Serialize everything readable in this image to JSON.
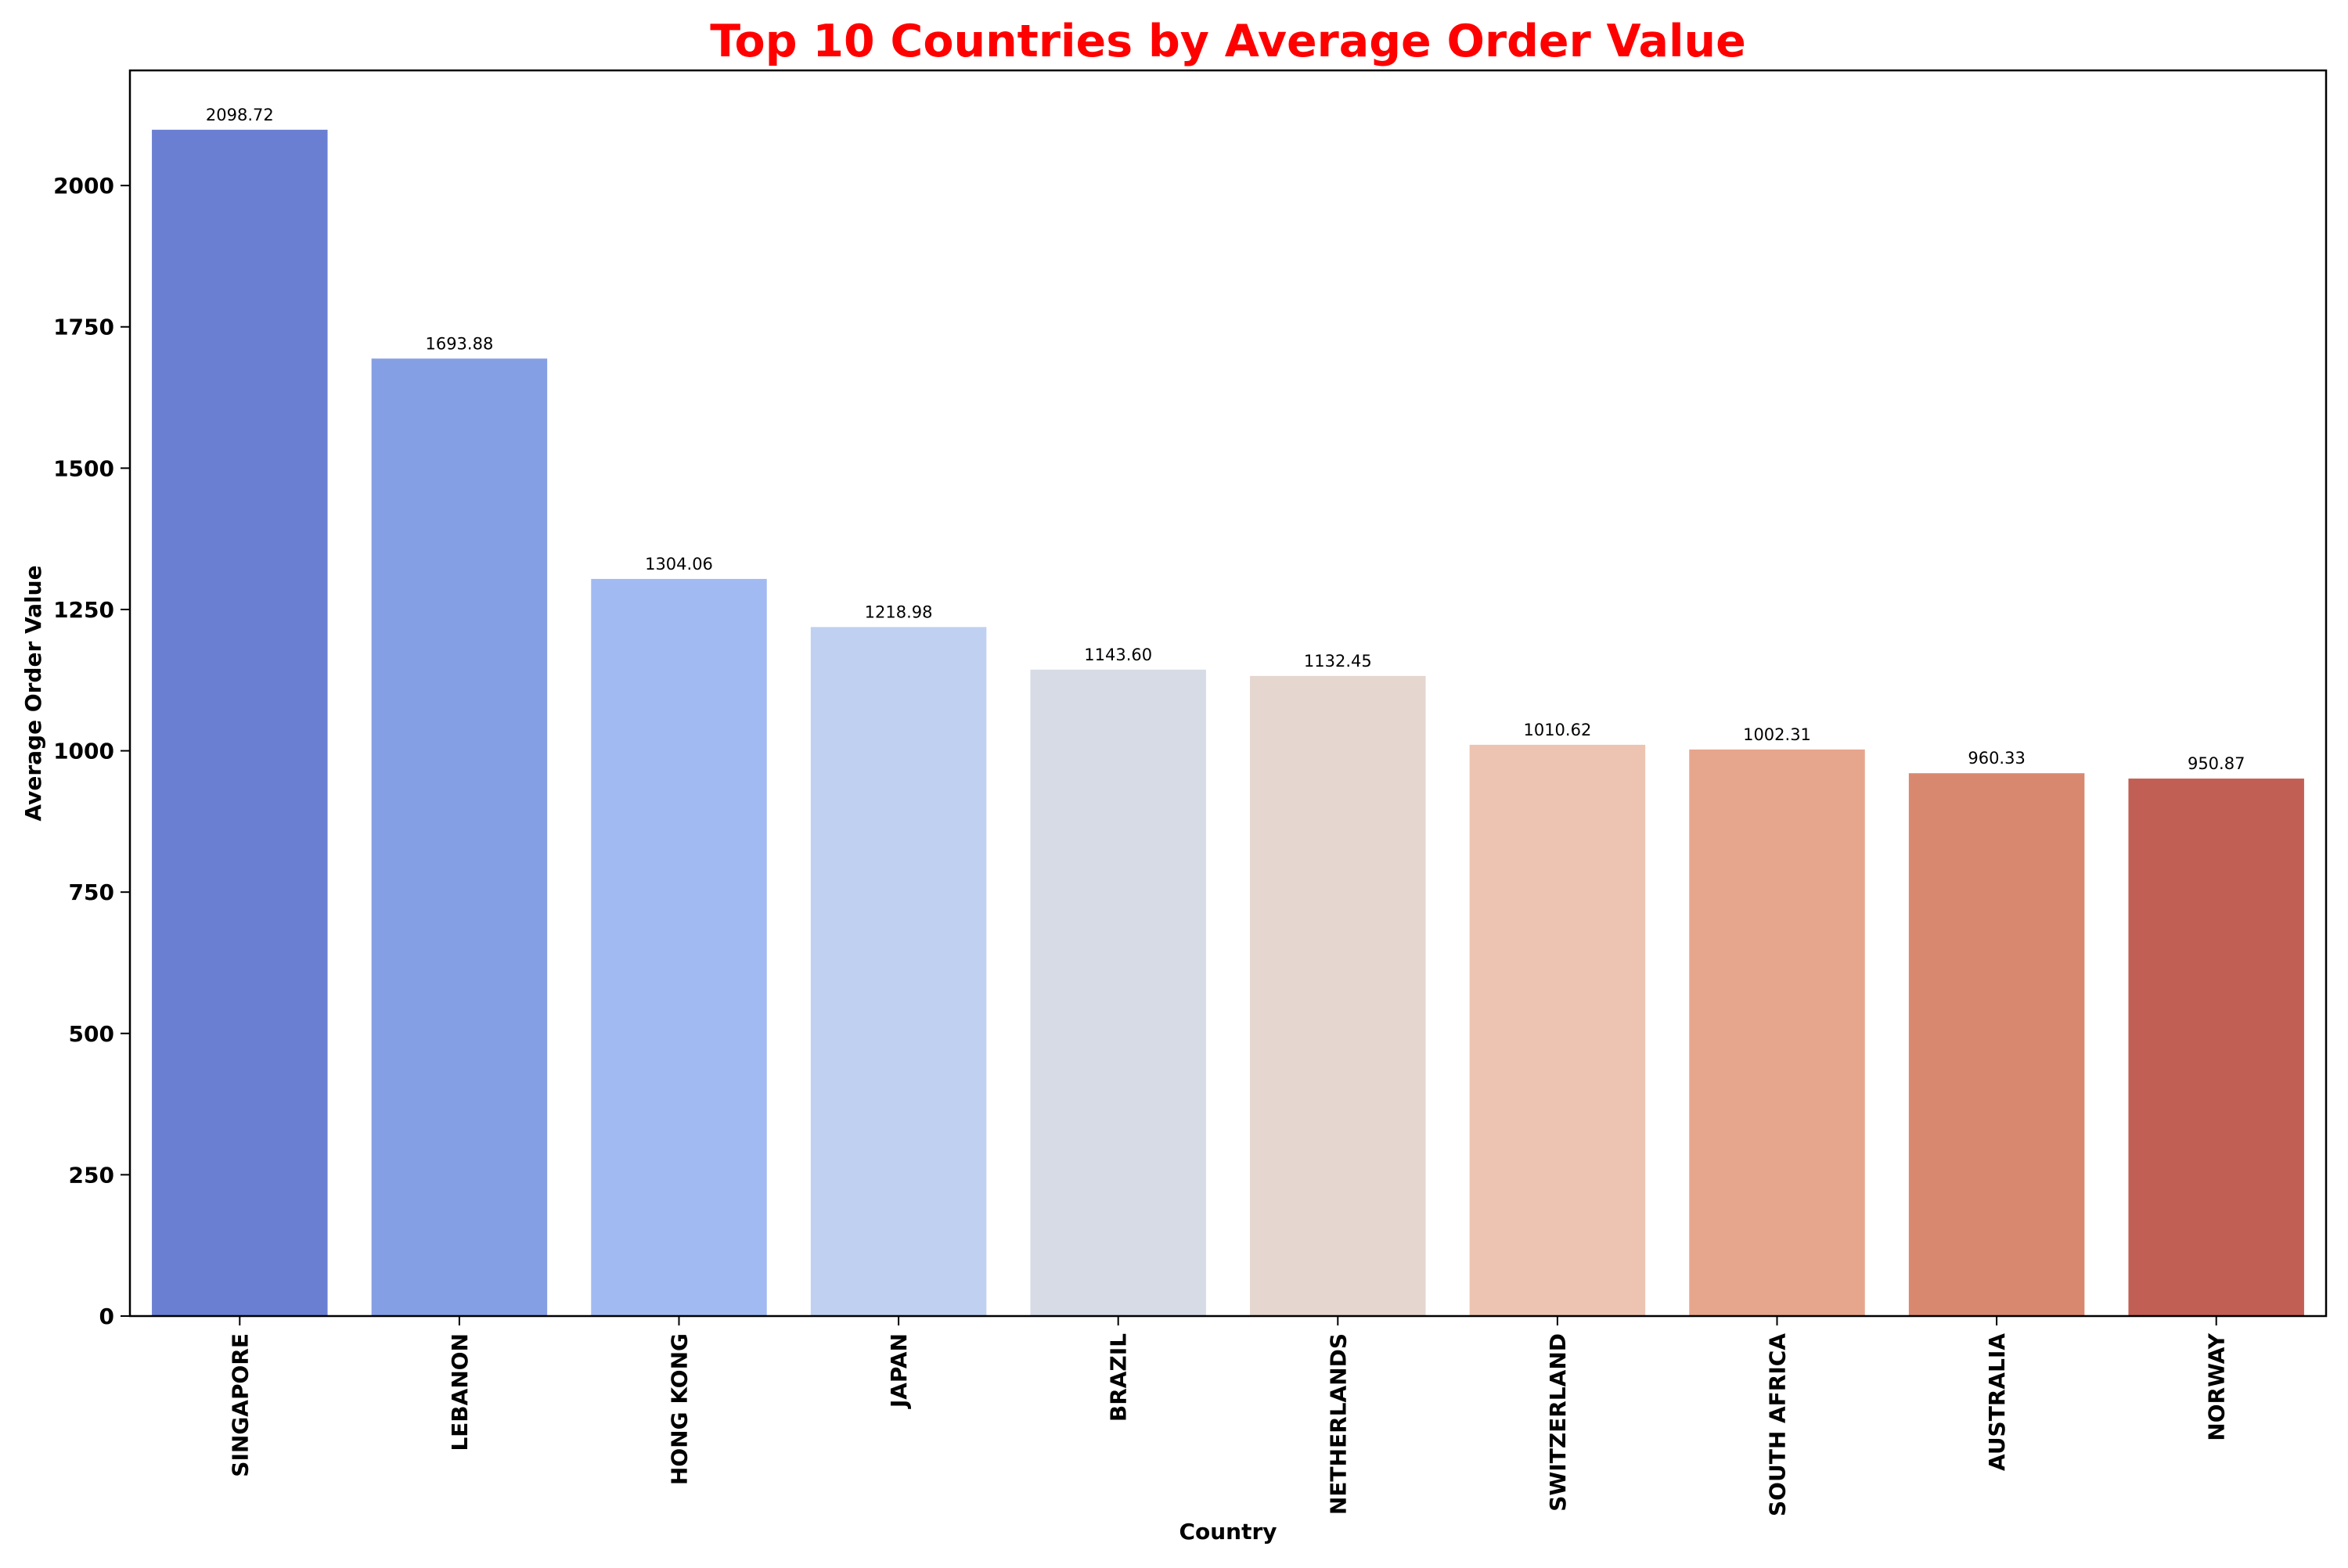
{
  "chart_data": {
    "type": "bar",
    "title": "Top 10 Countries by Average Order Value",
    "title_color": "#ff0000",
    "xlabel": "Country",
    "ylabel": "Average Order Value",
    "ylim": [
      0,
      2203.66
    ],
    "yticks": [
      0,
      250,
      500,
      750,
      1000,
      1250,
      1500,
      1750,
      2000
    ],
    "ytick_labels": [
      "0",
      "250",
      "500",
      "750",
      "1000",
      "1250",
      "1500",
      "1750",
      "2000"
    ],
    "grid": false,
    "legend": "none",
    "categories": [
      "SINGAPORE",
      "LEBANON",
      "HONG KONG",
      "JAPAN",
      "BRAZIL",
      "NETHERLANDS",
      "SWITZERLAND",
      "SOUTH AFRICA",
      "AUSTRALIA",
      "NORWAY"
    ],
    "values": [
      2098.72,
      1693.88,
      1304.06,
      1218.98,
      1143.6,
      1132.45,
      1010.62,
      1002.31,
      960.33,
      950.87
    ],
    "value_labels": [
      "2098.72",
      "1693.88",
      "1304.06",
      "1218.98",
      "1143.60",
      "1132.45",
      "1010.62",
      "1002.31",
      "960.33",
      "950.87"
    ],
    "colors": [
      "#6a7fd2",
      "#859fe4",
      "#a2baf2",
      "#bfd0f0",
      "#d6dbe6",
      "#e5d7cf",
      "#ecc4b1",
      "#e6a68d",
      "#d98870",
      "#c25f55"
    ]
  }
}
